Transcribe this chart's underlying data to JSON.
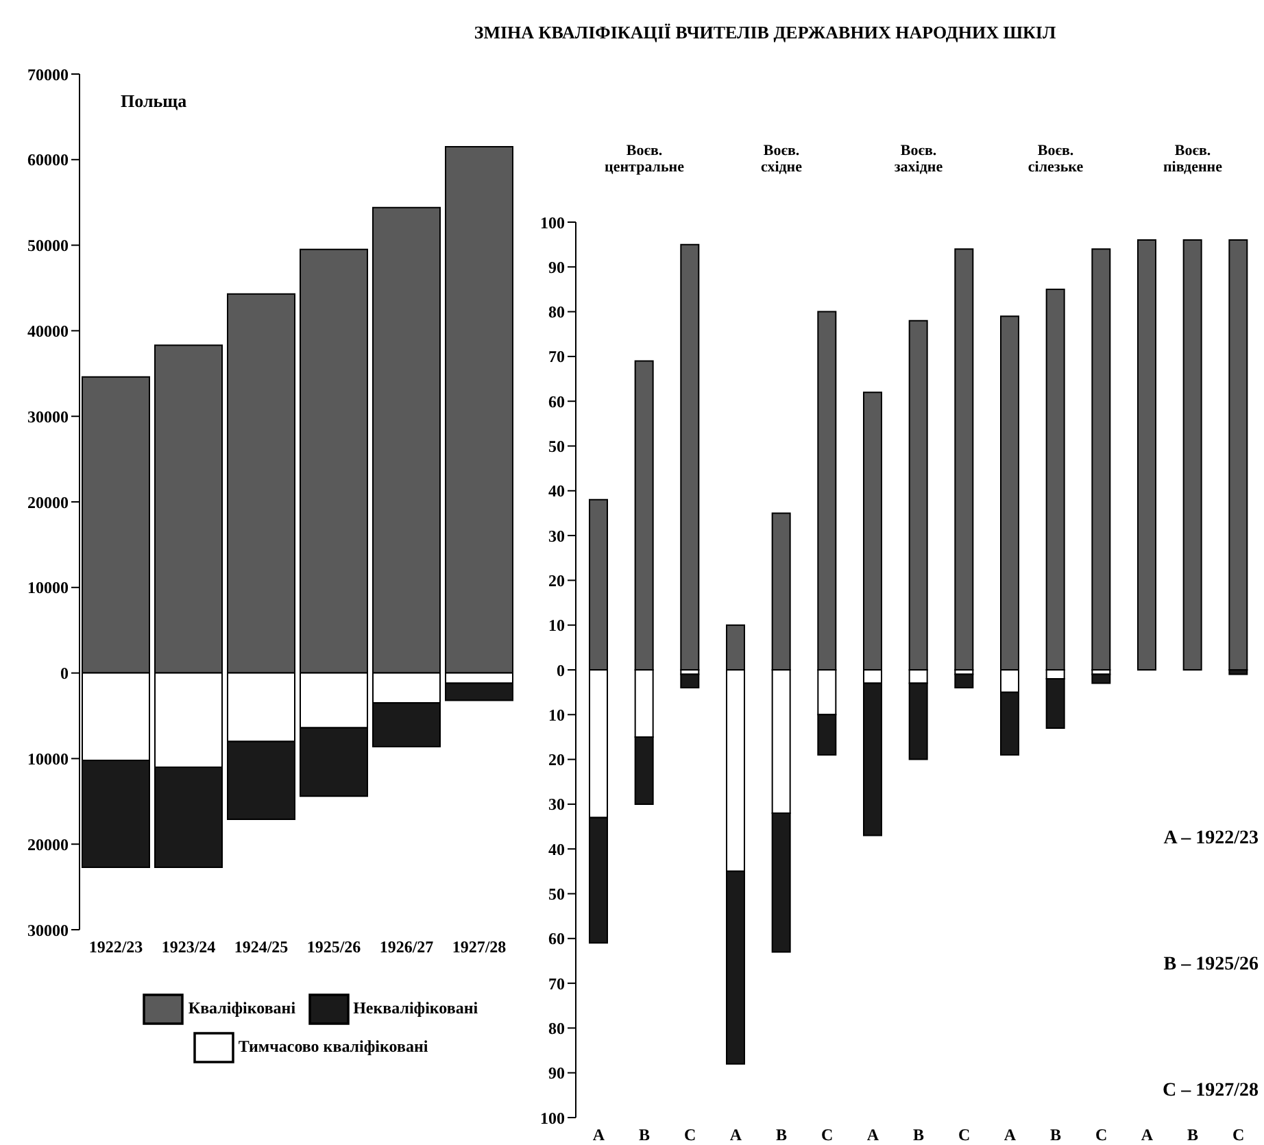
{
  "chart_data": [
    {
      "type": "bar",
      "title": "ЗМІНА КВАЛІФІКАЦІЇ ВЧИТЕЛІВ ДЕРЖАВНИХ НАРОДНИХ ШКІЛ",
      "subtitle": "Польща",
      "categories": [
        "1922/23",
        "1923/24",
        "1924/25",
        "1925/26",
        "1926/27",
        "1927/28"
      ],
      "stacked": true,
      "series": [
        {
          "name": "Кваліфіковані",
          "color": "#5a5a5a",
          "values": [
            34600,
            38300,
            44300,
            49500,
            54400,
            61500
          ]
        },
        {
          "name": "Тимчасово кваліфіковані",
          "color": "#ffffff",
          "values": [
            -10200,
            -11000,
            -8000,
            -6400,
            -3500,
            -1200
          ]
        },
        {
          "name": "Некваліфіковані",
          "color": "#1a1a1a",
          "values": [
            -12500,
            -11700,
            -9100,
            -8000,
            -5100,
            -2000
          ]
        }
      ],
      "ylim": [
        -30000,
        70000
      ],
      "yticks": [
        70000,
        60000,
        50000,
        40000,
        30000,
        20000,
        10000,
        0,
        {
          "value": -10000,
          "label": "10000"
        },
        {
          "value": -20000,
          "label": "20000"
        },
        {
          "value": -30000,
          "label": "30000"
        }
      ],
      "legend": "bottom"
    },
    {
      "type": "bar",
      "categories": [
        "A",
        "B",
        "C",
        "A",
        "B",
        "C",
        "A",
        "B",
        "C",
        "A",
        "B",
        "C",
        "A",
        "B",
        "C"
      ],
      "stacked": true,
      "series": [
        {
          "color": "#5a5a5a",
          "values": [
            38,
            69,
            95,
            10,
            35,
            80,
            62,
            78,
            94,
            79,
            85,
            94,
            96,
            96,
            96
          ]
        },
        {
          "color": "#ffffff",
          "values": [
            -33,
            -15,
            -1,
            -45,
            -32,
            -10,
            -3,
            -3,
            -1,
            -5,
            -2,
            -1,
            null,
            null,
            null
          ]
        },
        {
          "color": "#1a1a1a",
          "values": [
            -28,
            -15,
            -3,
            -43,
            -31,
            -9,
            -34,
            -17,
            -3,
            -14,
            -11,
            -2,
            null,
            null,
            -1
          ]
        }
      ],
      "ylim": [
        -100,
        100
      ],
      "yticks": [
        100,
        90,
        80,
        70,
        60,
        50,
        40,
        30,
        20,
        10,
        0,
        {
          "value": -10,
          "label": "10"
        },
        {
          "value": -20,
          "label": "20"
        },
        {
          "value": -30,
          "label": "30"
        },
        {
          "value": -40,
          "label": "40"
        },
        {
          "value": -50,
          "label": "50"
        },
        {
          "value": -60,
          "label": "60"
        },
        {
          "value": -70,
          "label": "70"
        },
        {
          "value": -80,
          "label": "80"
        },
        {
          "value": -90,
          "label": "90"
        },
        {
          "value": -100,
          "label": "100"
        }
      ],
      "annotations": [
        "Воєв. центральне",
        "Воєв. східне",
        "Воєв. західне",
        "Воєв. сілезьке",
        "Воєв. південне",
        "A – 1922/23",
        "B – 1925/26",
        "C – 1927/28"
      ]
    }
  ]
}
